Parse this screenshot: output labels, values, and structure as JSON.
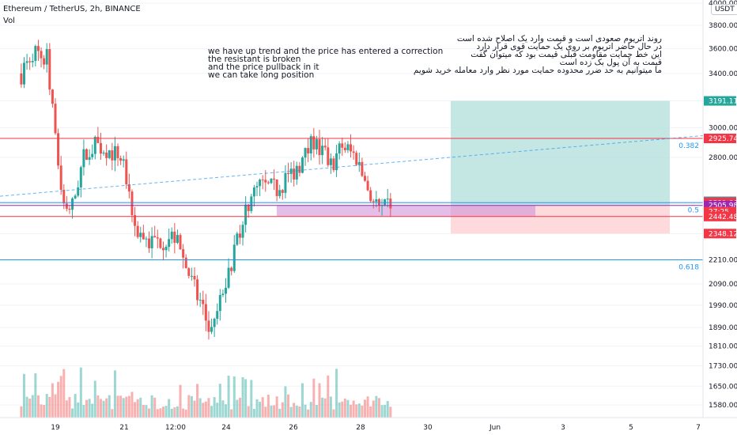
{
  "header": {
    "title": "Ethereum / TetherUS, 2h, BINANCE",
    "volume_label": "Vol"
  },
  "currency_button": "USDT",
  "notes": {
    "english": [
      "we have up trend and the price has entered a correction",
      "the resistant is broken",
      "and the price pullback in it",
      "we can take long position"
    ],
    "persian": [
      "روند اتریوم صعودی است و قیمت وارد یک اصلاح شده است",
      "در حال حاضر اتریوم بر روی یک حمایت قوی قرار دارد",
      "این خط حمایت مقاومت قبلی قیمت بود که میتوان گفت",
      "قیمت به آن پول بک زده است",
      "ما میتوانیم به حد ضرر محدوده حمایت مورد نظر وارد معامله خرید شویم"
    ]
  },
  "colors": {
    "up": "#26a69a",
    "down": "#ef5350",
    "fib": "#2196f3",
    "resistance": "#f23645",
    "support_zone": "#ce93d8",
    "target_zone": "#b2dfdb",
    "stop_zone": "#ffcdd2"
  },
  "chart_data": {
    "type": "candlestick",
    "symbol": "ETHUSDT",
    "interval": "2h",
    "price_axis_ticks": [
      1580,
      1650,
      1730,
      1810,
      1890,
      1990,
      2090,
      2210,
      2348.12,
      2442.48,
      2505.98,
      2521.8,
      2529.93,
      2800,
      2925.74,
      3000,
      3191.11,
      3400,
      3600,
      3800,
      4000
    ],
    "time_axis_ticks": [
      "19",
      "21",
      "12:00",
      "24",
      "26",
      "28",
      "30",
      "Jun",
      "3",
      "5",
      "7"
    ],
    "last_price": 2521.8,
    "countdown": "27:25",
    "fibonacci_levels": [
      {
        "ratio": "0.382",
        "price": 2925.74
      },
      {
        "ratio": "0.5",
        "price": 2521.8
      },
      {
        "ratio": "0.618",
        "price": 2210
      }
    ],
    "horizontal_levels": [
      {
        "name": "resistance",
        "price": 2925.74
      },
      {
        "name": "support-top",
        "price": 2505.98
      },
      {
        "name": "support-bottom",
        "price": 2442.48
      }
    ],
    "position": {
      "type": "long",
      "entry": 2505.98,
      "target": 3191.11,
      "stop": 2348.12
    },
    "price_labels": [
      {
        "text": "3191.11",
        "price": 3191.11,
        "color": "#26a69a"
      },
      {
        "text": "2925.74",
        "price": 2925.74,
        "color": "#f23645"
      },
      {
        "text": "2529.93",
        "price": 2529.93,
        "color": "#787b86"
      },
      {
        "text": "2521.80",
        "price": 2521.8,
        "color": "#f23645"
      },
      {
        "text": "2505.98",
        "price": 2505.98,
        "color": "#9c27b0"
      },
      {
        "text": "27:25",
        "price": 2470,
        "color": "#f23645"
      },
      {
        "text": "2442.48",
        "price": 2442.48,
        "color": "#f23645"
      },
      {
        "text": "2348.12",
        "price": 2348.12,
        "color": "#f23645"
      }
    ],
    "price_path_anchors": [
      {
        "date": "2021-05-18 00:00",
        "price": 3400
      },
      {
        "date": "2021-05-18 08:00",
        "price": 3580
      },
      {
        "date": "2021-05-18 18:00",
        "price": 3520
      },
      {
        "date": "2021-05-19 00:00",
        "price": 2900
      },
      {
        "date": "2021-05-19 06:00",
        "price": 2500
      },
      {
        "date": "2021-05-19 12:00",
        "price": 2500
      },
      {
        "date": "2021-05-19 20:00",
        "price": 2800
      },
      {
        "date": "2021-05-20 04:00",
        "price": 2880
      },
      {
        "date": "2021-05-20 12:00",
        "price": 2860
      },
      {
        "date": "2021-05-21 00:00",
        "price": 2780
      },
      {
        "date": "2021-05-21 06:00",
        "price": 2400
      },
      {
        "date": "2021-05-21 18:00",
        "price": 2300
      },
      {
        "date": "2021-05-22 12:00",
        "price": 2330
      },
      {
        "date": "2021-05-23 00:00",
        "price": 2100
      },
      {
        "date": "2021-05-23 14:00",
        "price": 1850
      },
      {
        "date": "2021-05-24 02:00",
        "price": 2150
      },
      {
        "date": "2021-05-24 14:00",
        "price": 2500
      },
      {
        "date": "2021-05-25 00:00",
        "price": 2620
      },
      {
        "date": "2021-05-25 12:00",
        "price": 2600
      },
      {
        "date": "2021-05-26 06:00",
        "price": 2780
      },
      {
        "date": "2021-05-26 14:00",
        "price": 2900
      },
      {
        "date": "2021-05-27 02:00",
        "price": 2750
      },
      {
        "date": "2021-05-27 10:00",
        "price": 2880
      },
      {
        "date": "2021-05-27 20:00",
        "price": 2800
      },
      {
        "date": "2021-05-28 06:00",
        "price": 2560
      },
      {
        "date": "2021-05-28 14:00",
        "price": 2460
      },
      {
        "date": "2021-05-28 20:00",
        "price": 2521.8
      }
    ]
  }
}
